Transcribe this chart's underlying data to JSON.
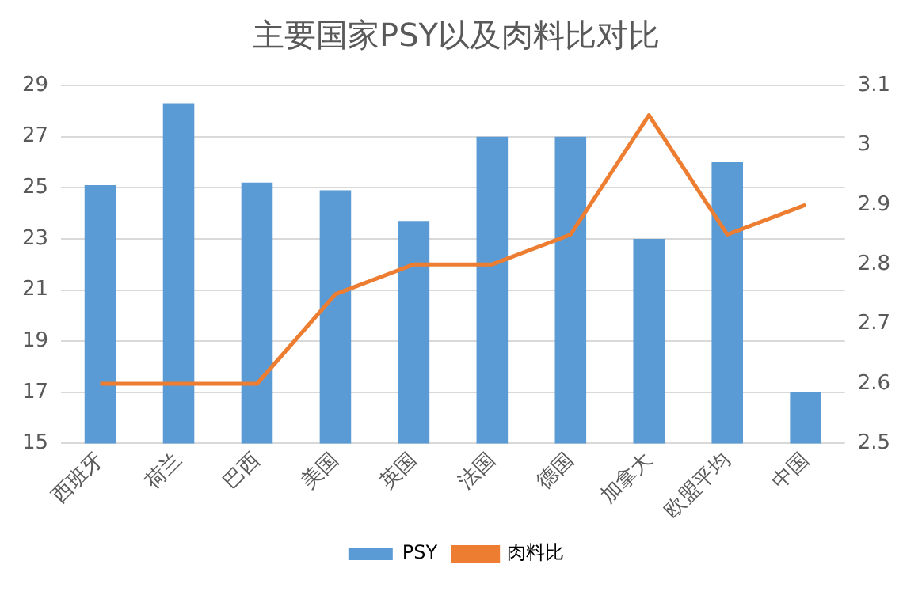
{
  "chart_data": {
    "type": "bar",
    "title": "主要国家PSY以及肉料比对比",
    "categories": [
      "西班牙",
      "荷兰",
      "巴西",
      "美国",
      "英国",
      "法国",
      "德国",
      "加拿大",
      "欧盟平均",
      "中国"
    ],
    "series": [
      {
        "name": "PSY",
        "color": "#5b9bd5",
        "values": [
          25.1,
          28.3,
          25.2,
          24.9,
          23.7,
          27,
          27,
          23,
          26,
          17
        ]
      },
      {
        "name": "肉料比",
        "type": "line",
        "axis": "y2",
        "color": "#ed7d31",
        "values": [
          2.6,
          2.6,
          2.6,
          2.75,
          2.8,
          2.8,
          2.85,
          3.05,
          2.85,
          2.9
        ]
      }
    ],
    "ylim": [
      15,
      29
    ],
    "yticks": [
      15,
      17,
      19,
      21,
      23,
      25,
      27,
      29
    ],
    "y2lim": [
      2.5,
      3.1
    ],
    "y2ticks": [
      2.5,
      2.6,
      2.7,
      2.8,
      2.9,
      3,
      3.1
    ],
    "grid": "y",
    "legend": "bottom",
    "marker": "none"
  }
}
